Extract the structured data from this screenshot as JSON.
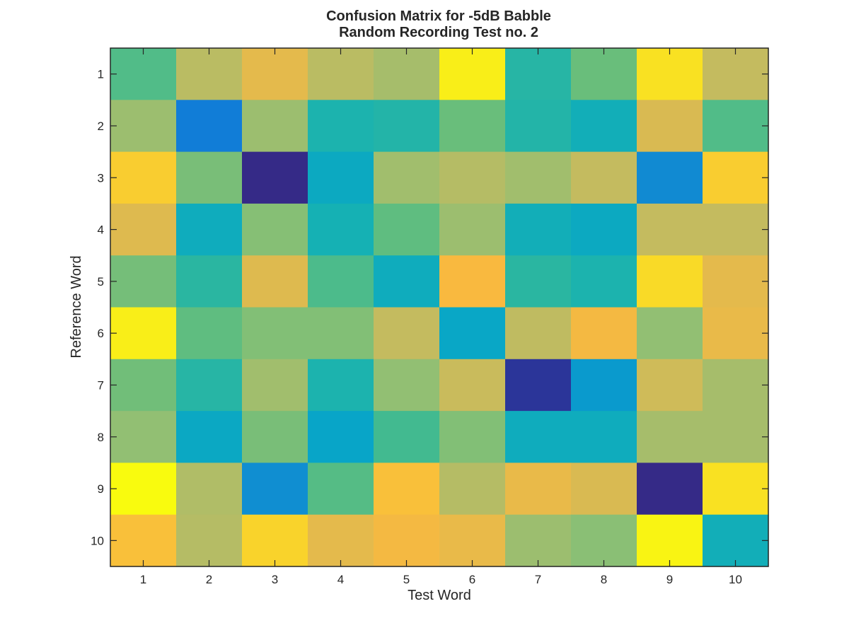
{
  "chart_data": {
    "type": "heatmap",
    "title": "Confusion Matrix for -5dB Babble",
    "subtitle": "Random Recording Test no. 2",
    "xlabel": "Test Word",
    "ylabel": "Reference Word",
    "x_ticks": [
      "1",
      "2",
      "3",
      "4",
      "5",
      "6",
      "7",
      "8",
      "9",
      "10"
    ],
    "y_ticks": [
      "1",
      "2",
      "3",
      "4",
      "5",
      "6",
      "7",
      "8",
      "9",
      "10"
    ],
    "colormap": "parula",
    "colorbar": false,
    "grid": false,
    "values": [
      [
        0.55,
        0.78,
        0.86,
        0.78,
        0.74,
        0.98,
        0.45,
        0.6,
        0.96,
        0.8
      ],
      [
        0.72,
        0.18,
        0.72,
        0.42,
        0.44,
        0.6,
        0.44,
        0.38,
        0.84,
        0.55
      ],
      [
        0.93,
        0.64,
        0.0,
        0.34,
        0.73,
        0.77,
        0.73,
        0.8,
        0.22,
        0.93
      ],
      [
        0.85,
        0.36,
        0.67,
        0.4,
        0.58,
        0.72,
        0.38,
        0.34,
        0.8,
        0.8
      ],
      [
        0.63,
        0.46,
        0.85,
        0.54,
        0.36,
        0.9,
        0.46,
        0.42,
        0.95,
        0.86
      ],
      [
        0.98,
        0.58,
        0.66,
        0.66,
        0.8,
        0.32,
        0.79,
        0.89,
        0.7,
        0.87
      ],
      [
        0.62,
        0.45,
        0.73,
        0.42,
        0.7,
        0.81,
        0.02,
        0.27,
        0.82,
        0.74
      ],
      [
        0.7,
        0.33,
        0.64,
        0.31,
        0.52,
        0.66,
        0.36,
        0.36,
        0.74,
        0.74
      ],
      [
        1.0,
        0.76,
        0.23,
        0.56,
        0.91,
        0.77,
        0.87,
        0.84,
        -0.01,
        0.96
      ],
      [
        0.91,
        0.77,
        0.94,
        0.86,
        0.89,
        0.87,
        0.72,
        0.68,
        0.99,
        0.38
      ]
    ],
    "color_range": [
      0,
      1
    ]
  }
}
